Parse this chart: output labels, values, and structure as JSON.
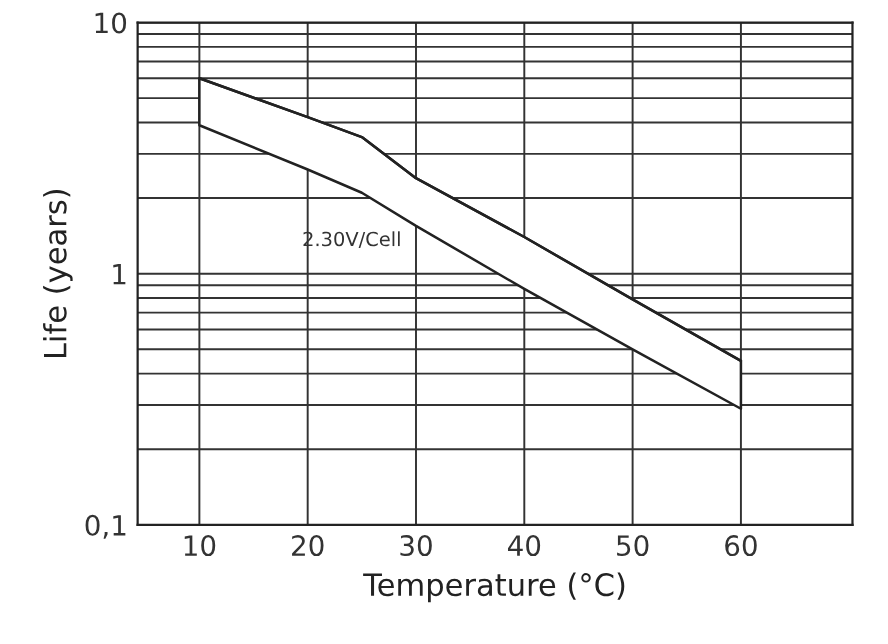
{
  "chart_data": {
    "type": "line",
    "xlabel": "Temperature (°C)",
    "ylabel": "Life (years)",
    "log": "y",
    "grid": true,
    "legend": false,
    "marker": "none",
    "line_style": "solid",
    "x": [
      10,
      20,
      25,
      30,
      40,
      50,
      60
    ],
    "series": [
      {
        "color": "#222222",
        "values": [
          6.0,
          4.2,
          3.5,
          2.4,
          1.4,
          0.79,
          0.45
        ],
        "upper": [
          6.0,
          4.2,
          3.5,
          2.4,
          1.4,
          0.79,
          0.45
        ],
        "lower": [
          3.9,
          2.6,
          2.1,
          1.55,
          0.87,
          0.5,
          0.29
        ]
      }
    ],
    "xlim": [
      4.3,
      70.3
    ],
    "xticks": [
      10,
      20,
      30,
      40,
      50,
      60
    ],
    "ylim": [
      0.1,
      10
    ],
    "yticks": [
      {
        "value": 0.1,
        "label": "0,1"
      },
      {
        "value": 0.2,
        "label": null
      },
      {
        "value": 0.3,
        "label": null
      },
      {
        "value": 0.4,
        "label": null
      },
      {
        "value": 0.5,
        "label": null
      },
      {
        "value": 0.6,
        "label": null
      },
      {
        "value": 0.7,
        "label": null
      },
      {
        "value": 0.8,
        "label": null
      },
      {
        "value": 0.9,
        "label": null
      },
      1,
      {
        "value": 2,
        "label": null
      },
      {
        "value": 3,
        "label": null
      },
      {
        "value": 4,
        "label": null
      },
      {
        "value": 5,
        "label": null
      },
      {
        "value": 6,
        "label": null
      },
      {
        "value": 7,
        "label": null
      },
      {
        "value": 8,
        "label": null
      },
      {
        "value": 9,
        "label": null
      },
      10
    ],
    "annotations": [
      "2.30V/Cell"
    ]
  }
}
